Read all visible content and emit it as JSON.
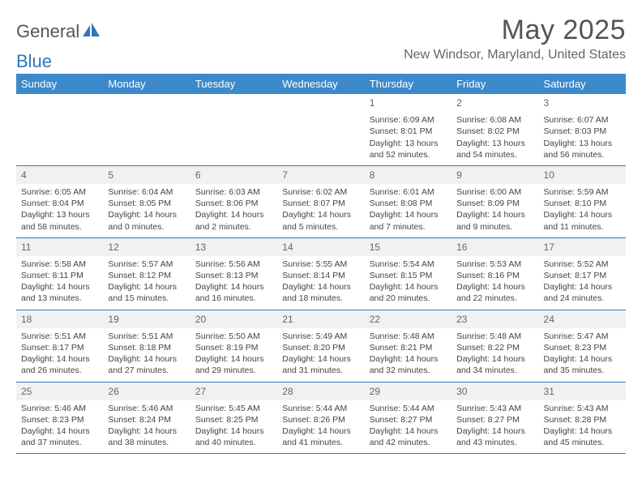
{
  "logo": {
    "part1": "General",
    "part2": "Blue"
  },
  "title": "May 2025",
  "location": "New Windsor, Maryland, United States",
  "colors": {
    "header_bg": "#3c8acb",
    "border": "#2f76bc",
    "text": "#444444"
  },
  "weekdays": [
    "Sunday",
    "Monday",
    "Tuesday",
    "Wednesday",
    "Thursday",
    "Friday",
    "Saturday"
  ],
  "grid": {
    "first_weekday_index": 4,
    "days_in_month": 31
  },
  "days": [
    {
      "n": 1,
      "sunrise": "6:09 AM",
      "sunset": "8:01 PM",
      "daylight": "13 hours and 52 minutes."
    },
    {
      "n": 2,
      "sunrise": "6:08 AM",
      "sunset": "8:02 PM",
      "daylight": "13 hours and 54 minutes."
    },
    {
      "n": 3,
      "sunrise": "6:07 AM",
      "sunset": "8:03 PM",
      "daylight": "13 hours and 56 minutes."
    },
    {
      "n": 4,
      "sunrise": "6:05 AM",
      "sunset": "8:04 PM",
      "daylight": "13 hours and 58 minutes."
    },
    {
      "n": 5,
      "sunrise": "6:04 AM",
      "sunset": "8:05 PM",
      "daylight": "14 hours and 0 minutes."
    },
    {
      "n": 6,
      "sunrise": "6:03 AM",
      "sunset": "8:06 PM",
      "daylight": "14 hours and 2 minutes."
    },
    {
      "n": 7,
      "sunrise": "6:02 AM",
      "sunset": "8:07 PM",
      "daylight": "14 hours and 5 minutes."
    },
    {
      "n": 8,
      "sunrise": "6:01 AM",
      "sunset": "8:08 PM",
      "daylight": "14 hours and 7 minutes."
    },
    {
      "n": 9,
      "sunrise": "6:00 AM",
      "sunset": "8:09 PM",
      "daylight": "14 hours and 9 minutes."
    },
    {
      "n": 10,
      "sunrise": "5:59 AM",
      "sunset": "8:10 PM",
      "daylight": "14 hours and 11 minutes."
    },
    {
      "n": 11,
      "sunrise": "5:58 AM",
      "sunset": "8:11 PM",
      "daylight": "14 hours and 13 minutes."
    },
    {
      "n": 12,
      "sunrise": "5:57 AM",
      "sunset": "8:12 PM",
      "daylight": "14 hours and 15 minutes."
    },
    {
      "n": 13,
      "sunrise": "5:56 AM",
      "sunset": "8:13 PM",
      "daylight": "14 hours and 16 minutes."
    },
    {
      "n": 14,
      "sunrise": "5:55 AM",
      "sunset": "8:14 PM",
      "daylight": "14 hours and 18 minutes."
    },
    {
      "n": 15,
      "sunrise": "5:54 AM",
      "sunset": "8:15 PM",
      "daylight": "14 hours and 20 minutes."
    },
    {
      "n": 16,
      "sunrise": "5:53 AM",
      "sunset": "8:16 PM",
      "daylight": "14 hours and 22 minutes."
    },
    {
      "n": 17,
      "sunrise": "5:52 AM",
      "sunset": "8:17 PM",
      "daylight": "14 hours and 24 minutes."
    },
    {
      "n": 18,
      "sunrise": "5:51 AM",
      "sunset": "8:17 PM",
      "daylight": "14 hours and 26 minutes."
    },
    {
      "n": 19,
      "sunrise": "5:51 AM",
      "sunset": "8:18 PM",
      "daylight": "14 hours and 27 minutes."
    },
    {
      "n": 20,
      "sunrise": "5:50 AM",
      "sunset": "8:19 PM",
      "daylight": "14 hours and 29 minutes."
    },
    {
      "n": 21,
      "sunrise": "5:49 AM",
      "sunset": "8:20 PM",
      "daylight": "14 hours and 31 minutes."
    },
    {
      "n": 22,
      "sunrise": "5:48 AM",
      "sunset": "8:21 PM",
      "daylight": "14 hours and 32 minutes."
    },
    {
      "n": 23,
      "sunrise": "5:48 AM",
      "sunset": "8:22 PM",
      "daylight": "14 hours and 34 minutes."
    },
    {
      "n": 24,
      "sunrise": "5:47 AM",
      "sunset": "8:23 PM",
      "daylight": "14 hours and 35 minutes."
    },
    {
      "n": 25,
      "sunrise": "5:46 AM",
      "sunset": "8:23 PM",
      "daylight": "14 hours and 37 minutes."
    },
    {
      "n": 26,
      "sunrise": "5:46 AM",
      "sunset": "8:24 PM",
      "daylight": "14 hours and 38 minutes."
    },
    {
      "n": 27,
      "sunrise": "5:45 AM",
      "sunset": "8:25 PM",
      "daylight": "14 hours and 40 minutes."
    },
    {
      "n": 28,
      "sunrise": "5:44 AM",
      "sunset": "8:26 PM",
      "daylight": "14 hours and 41 minutes."
    },
    {
      "n": 29,
      "sunrise": "5:44 AM",
      "sunset": "8:27 PM",
      "daylight": "14 hours and 42 minutes."
    },
    {
      "n": 30,
      "sunrise": "5:43 AM",
      "sunset": "8:27 PM",
      "daylight": "14 hours and 43 minutes."
    },
    {
      "n": 31,
      "sunrise": "5:43 AM",
      "sunset": "8:28 PM",
      "daylight": "14 hours and 45 minutes."
    }
  ],
  "labels": {
    "sunrise": "Sunrise:",
    "sunset": "Sunset:",
    "daylight": "Daylight:"
  }
}
